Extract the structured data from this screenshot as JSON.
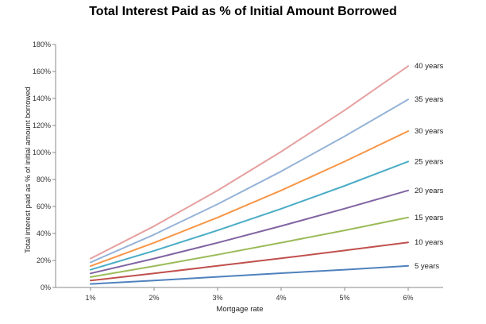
{
  "chart_data": {
    "type": "line",
    "title": "Total Interest Paid as % of Initial Amount Borrowed",
    "xlabel": "Mortgage rate",
    "ylabel": "Total interest paid as % of initial amount borrowed",
    "x": [
      1,
      2,
      3,
      4,
      5,
      6
    ],
    "x_tick_labels": [
      "1%",
      "2%",
      "3%",
      "4%",
      "5%",
      "6%"
    ],
    "xlim": [
      0.45,
      6.55
    ],
    "ylim": [
      0,
      180
    ],
    "y_ticks": [
      0,
      20,
      40,
      60,
      80,
      100,
      120,
      140,
      160,
      180
    ],
    "y_tick_labels": [
      "0%",
      "20%",
      "40%",
      "60%",
      "80%",
      "100%",
      "120%",
      "140%",
      "160%",
      "180%"
    ],
    "grid": false,
    "legend": "labels at line ends",
    "series": [
      {
        "name": "5 years",
        "color": "#4f81bd",
        "values": [
          2.6,
          5.2,
          7.9,
          10.6,
          13.2,
          16.0
        ]
      },
      {
        "name": "10 years",
        "color": "#c0504d",
        "values": [
          5.1,
          10.4,
          16.0,
          21.6,
          27.4,
          33.4
        ]
      },
      {
        "name": "15 years",
        "color": "#9bbb59",
        "values": [
          7.7,
          15.8,
          24.3,
          33.2,
          42.3,
          51.9
        ]
      },
      {
        "name": "20 years",
        "color": "#8064a2",
        "values": [
          10.4,
          21.4,
          33.1,
          45.5,
          58.4,
          71.9
        ]
      },
      {
        "name": "25 years",
        "color": "#4bacc6",
        "values": [
          13.1,
          27.2,
          42.3,
          58.3,
          75.3,
          93.3
        ]
      },
      {
        "name": "30 years",
        "color": "#f79646",
        "values": [
          15.8,
          33.1,
          51.8,
          71.9,
          93.3,
          115.8
        ]
      },
      {
        "name": "35 years",
        "color": "#95b3d7",
        "values": [
          18.6,
          39.2,
          61.7,
          86.0,
          112.0,
          139.3
        ]
      },
      {
        "name": "40 years",
        "color": "#e6a0a0",
        "values": [
          21.4,
          45.4,
          71.8,
          100.6,
          131.3,
          164.0
        ]
      }
    ]
  }
}
